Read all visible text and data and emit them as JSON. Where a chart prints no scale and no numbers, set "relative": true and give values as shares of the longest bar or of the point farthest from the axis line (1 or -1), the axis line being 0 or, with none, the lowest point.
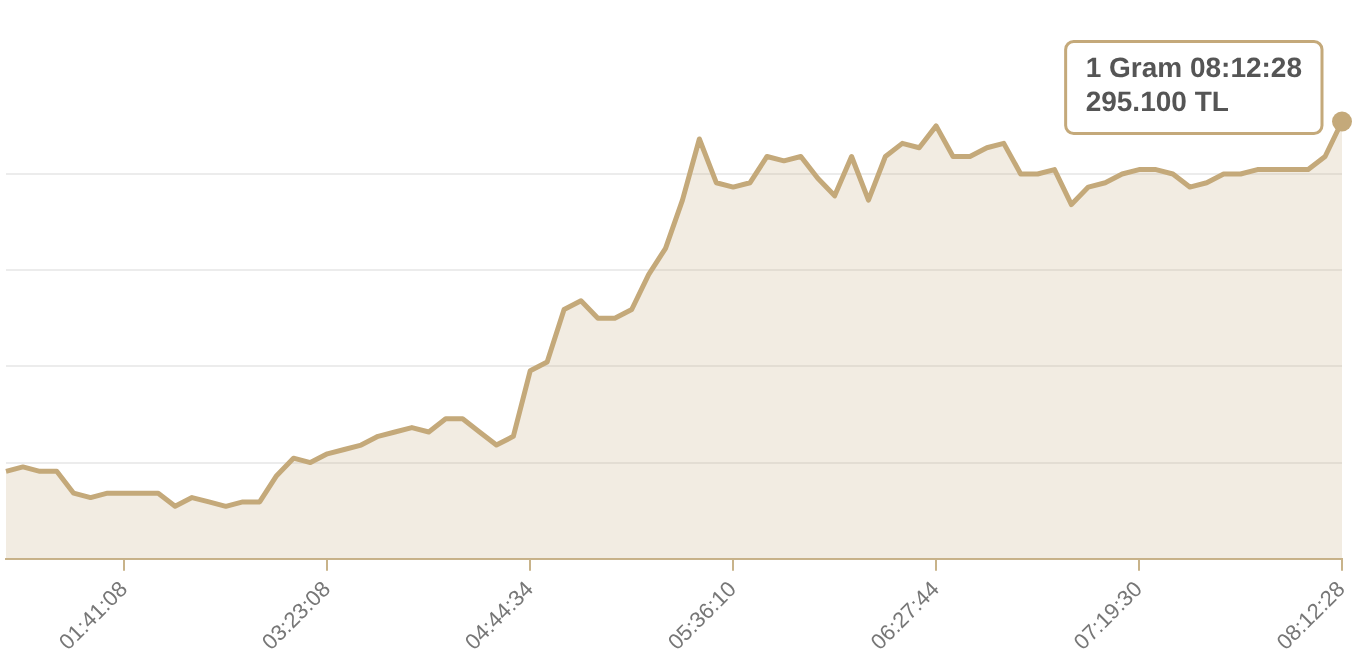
{
  "chart_data": {
    "type": "area",
    "relative": true,
    "grid": "y",
    "marker": "none",
    "legend": false,
    "categories": [
      null,
      null,
      null,
      null,
      null,
      null,
      null,
      "01:41:08",
      null,
      null,
      null,
      null,
      null,
      null,
      null,
      null,
      null,
      null,
      null,
      "03:23:08",
      null,
      null,
      null,
      null,
      null,
      null,
      null,
      null,
      null,
      null,
      null,
      "04:44:34",
      null,
      null,
      null,
      null,
      null,
      null,
      null,
      null,
      null,
      null,
      null,
      "05:36:10",
      null,
      null,
      null,
      null,
      null,
      null,
      null,
      null,
      null,
      null,
      null,
      "06:27:44",
      null,
      null,
      null,
      null,
      null,
      null,
      null,
      null,
      null,
      null,
      null,
      "07:19:30",
      null,
      null,
      null,
      null,
      null,
      null,
      null,
      null,
      null,
      null,
      null,
      "08:12:28"
    ],
    "series": [
      {
        "color": "#c4a97a",
        "values": [
          0.2,
          0.21,
          0.2,
          0.2,
          0.15,
          0.14,
          0.15,
          0.15,
          0.15,
          0.15,
          0.12,
          0.14,
          0.13,
          0.12,
          0.13,
          0.13,
          0.19,
          0.23,
          0.22,
          0.24,
          0.25,
          0.26,
          0.28,
          0.29,
          0.3,
          0.29,
          0.32,
          0.32,
          0.29,
          0.26,
          0.28,
          0.43,
          0.45,
          0.57,
          0.59,
          0.55,
          0.55,
          0.57,
          0.65,
          0.71,
          0.82,
          0.96,
          0.86,
          0.85,
          0.86,
          0.92,
          0.91,
          0.92,
          0.87,
          0.83,
          0.92,
          0.82,
          0.92,
          0.95,
          0.94,
          0.99,
          0.92,
          0.92,
          0.94,
          0.95,
          0.88,
          0.88,
          0.89,
          0.81,
          0.85,
          0.86,
          0.88,
          0.89,
          0.89,
          0.88,
          0.85,
          0.86,
          0.88,
          0.88,
          0.89,
          0.89,
          0.89,
          0.89,
          0.92,
          1
        ]
      }
    ],
    "annotations": [
      {
        "text": "1 Gram 08:12:28\n295.100 TL",
        "x": "08:12:28",
        "y": 1
      }
    ]
  }
}
